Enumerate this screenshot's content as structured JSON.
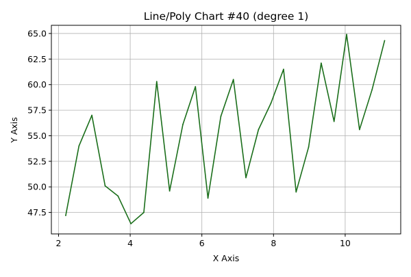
{
  "chart_data": {
    "type": "line",
    "title": "Line/Poly Chart #40 (degree 1)",
    "xlabel": "X Axis",
    "ylabel": "Y Axis",
    "xlim": [
      1.8,
      11.55
    ],
    "ylim": [
      45.4,
      65.8
    ],
    "xticks": [
      2,
      4,
      6,
      8,
      10
    ],
    "yticks": [
      47.5,
      50.0,
      52.5,
      55.0,
      57.5,
      60.0,
      62.5,
      65.0
    ],
    "grid": true,
    "series": [
      {
        "color": "#1a6e1a",
        "x": [
          2.2,
          2.57,
          2.93,
          3.3,
          3.66,
          4.02,
          4.38,
          4.74,
          5.1,
          5.47,
          5.82,
          6.17,
          6.53,
          6.88,
          7.23,
          7.58,
          7.93,
          8.28,
          8.63,
          8.98,
          9.33,
          9.69,
          10.04,
          10.4,
          10.75,
          11.1
        ],
        "y": [
          47.2,
          54.0,
          57.0,
          50.1,
          49.1,
          46.4,
          47.5,
          60.3,
          49.6,
          56.1,
          59.8,
          48.9,
          56.9,
          60.5,
          50.9,
          55.6,
          58.2,
          61.5,
          49.5,
          53.9,
          62.1,
          56.4,
          64.9,
          55.6,
          59.5,
          64.3
        ]
      }
    ]
  }
}
